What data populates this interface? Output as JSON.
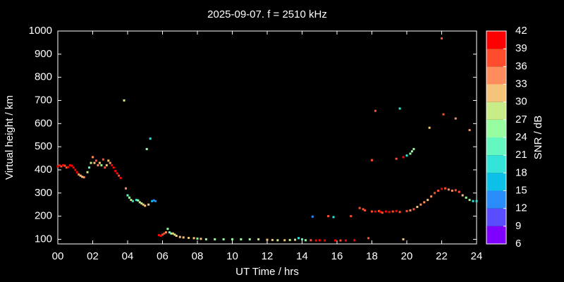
{
  "chart_data": {
    "type": "scatter",
    "title": "2025-09-07. f = 2510 kHz",
    "x_label": "UT Time / hrs",
    "y_label": "Virtual height / km",
    "xlim": [
      0,
      24
    ],
    "xticks": [
      {
        "value": 0,
        "label": "00"
      },
      {
        "value": 2,
        "label": "02"
      },
      {
        "value": 4,
        "label": "04"
      },
      {
        "value": 6,
        "label": "06"
      },
      {
        "value": 8,
        "label": "08"
      },
      10,
      12,
      14,
      16,
      18,
      20,
      22,
      24
    ],
    "ylim": [
      80,
      1000
    ],
    "yticks": [
      100,
      200,
      300,
      400,
      500,
      600,
      700,
      800,
      900,
      1000
    ],
    "x": [
      0.0,
      0.1,
      0.2,
      0.3,
      0.4,
      0.5,
      0.6,
      0.7,
      0.8,
      0.9,
      1.0,
      1.1,
      1.2,
      1.3,
      1.4,
      1.5,
      1.7,
      1.8,
      1.9,
      2.0,
      2.1,
      2.2,
      2.3,
      2.4,
      2.5,
      2.6,
      2.7,
      2.8,
      2.9,
      3.0,
      3.1,
      3.2,
      3.3,
      3.4,
      3.5,
      3.6,
      3.8,
      3.9,
      4.0,
      4.1,
      4.2,
      4.3,
      4.5,
      4.6,
      4.7,
      4.8,
      4.9,
      5.0,
      5.1,
      5.2,
      5.3,
      5.4,
      5.5,
      5.6,
      5.8,
      5.9,
      6.0,
      6.1,
      6.2,
      6.3,
      6.4,
      6.5,
      6.6,
      6.7,
      6.8,
      7.0,
      7.2,
      7.5,
      7.8,
      8.0,
      8.2,
      8.5,
      9.0,
      9.5,
      10.0,
      10.5,
      11.0,
      11.5,
      12.0,
      12.3,
      12.6,
      13.0,
      13.3,
      13.6,
      13.8,
      14.0,
      14.2,
      14.5,
      14.6,
      14.8,
      15.0,
      15.3,
      15.5,
      15.8,
      15.9,
      16.2,
      16.5,
      16.8,
      17.0,
      17.3,
      17.5,
      17.6,
      17.8,
      18.0,
      18.2,
      18.4,
      18.5,
      18.6,
      18.8,
      19.0,
      19.2,
      19.4,
      19.6,
      19.8,
      20.0,
      20.2,
      20.4,
      20.6,
      20.8,
      21.0,
      21.2,
      21.4,
      21.6,
      21.8,
      22.0,
      22.2,
      22.4,
      22.6,
      22.8,
      23.0,
      23.2,
      23.4,
      23.6,
      23.8,
      24.0,
      18.0,
      18.2,
      19.4,
      19.6,
      19.8,
      20.0,
      20.2,
      20.3,
      20.4,
      21.3,
      22.0,
      22.1,
      22.8,
      23.6
    ],
    "values": [
      415,
      420,
      415,
      420,
      418,
      410,
      412,
      420,
      418,
      410,
      400,
      390,
      380,
      375,
      370,
      368,
      390,
      410,
      430,
      455,
      430,
      440,
      420,
      430,
      420,
      445,
      410,
      420,
      440,
      430,
      420,
      410,
      395,
      385,
      375,
      365,
      700,
      320,
      290,
      280,
      270,
      265,
      270,
      268,
      260,
      255,
      250,
      245,
      490,
      250,
      535,
      265,
      268,
      265,
      118,
      115,
      120,
      125,
      130,
      145,
      130,
      125,
      125,
      120,
      115,
      110,
      108,
      106,
      105,
      103,
      102,
      100,
      100,
      100,
      100,
      100,
      100,
      100,
      98,
      97,
      96,
      96,
      97,
      98,
      105,
      100,
      96,
      96,
      198,
      95,
      96,
      95,
      200,
      196,
      95,
      95,
      95,
      200,
      96,
      235,
      230,
      225,
      105,
      220,
      220,
      222,
      218,
      215,
      220,
      218,
      220,
      222,
      218,
      100,
      222,
      225,
      230,
      240,
      250,
      260,
      270,
      285,
      300,
      310,
      318,
      320,
      315,
      310,
      312,
      305,
      290,
      280,
      270,
      265,
      265,
      442,
      655,
      448,
      665,
      455,
      462,
      470,
      480,
      490,
      582,
      968,
      640,
      622,
      572
    ],
    "snr": [
      40,
      40,
      38,
      40,
      38,
      36,
      40,
      40,
      40,
      41,
      40,
      40,
      34,
      32,
      31,
      35,
      28,
      22,
      27,
      34,
      30,
      37,
      35,
      32,
      26,
      37,
      37,
      30,
      30,
      33,
      40,
      40,
      40,
      40,
      38,
      40,
      28,
      34,
      22,
      25,
      28,
      19,
      20,
      24,
      28,
      29,
      32,
      30,
      24,
      30,
      20,
      16,
      12,
      14,
      40,
      40,
      38,
      38,
      35,
      24,
      22,
      24,
      30,
      28,
      30,
      31,
      30,
      32,
      30,
      26,
      30,
      26,
      25,
      25,
      26,
      26,
      25,
      28,
      30,
      30,
      28,
      30,
      28,
      27,
      20,
      22,
      26,
      36,
      14,
      40,
      40,
      40,
      38,
      18,
      40,
      38,
      40,
      38,
      40,
      38,
      38,
      38,
      38,
      38,
      40,
      36,
      40,
      38,
      40,
      40,
      36,
      40,
      38,
      30,
      37,
      35,
      38,
      32,
      34,
      34,
      32,
      34,
      36,
      38,
      40,
      36,
      34,
      33,
      38,
      36,
      30,
      26,
      24,
      20,
      18,
      38,
      38,
      38,
      18,
      40,
      20,
      24,
      24,
      26,
      30,
      38,
      38,
      34,
      34
    ],
    "colorbar": {
      "label": "SNR / dB",
      "lim": [
        6,
        42
      ],
      "ticks": [
        6,
        9,
        12,
        15,
        18,
        21,
        24,
        27,
        30,
        33,
        36,
        39,
        42
      ],
      "colors": [
        "#8000ff",
        "#5a4cff",
        "#2a8cf8",
        "#0cc0e8",
        "#34e4d8",
        "#64f8c0",
        "#98fca0",
        "#c8ec88",
        "#f4c47a",
        "#ff8c5c",
        "#ff4c2c",
        "#ff0000"
      ]
    }
  }
}
